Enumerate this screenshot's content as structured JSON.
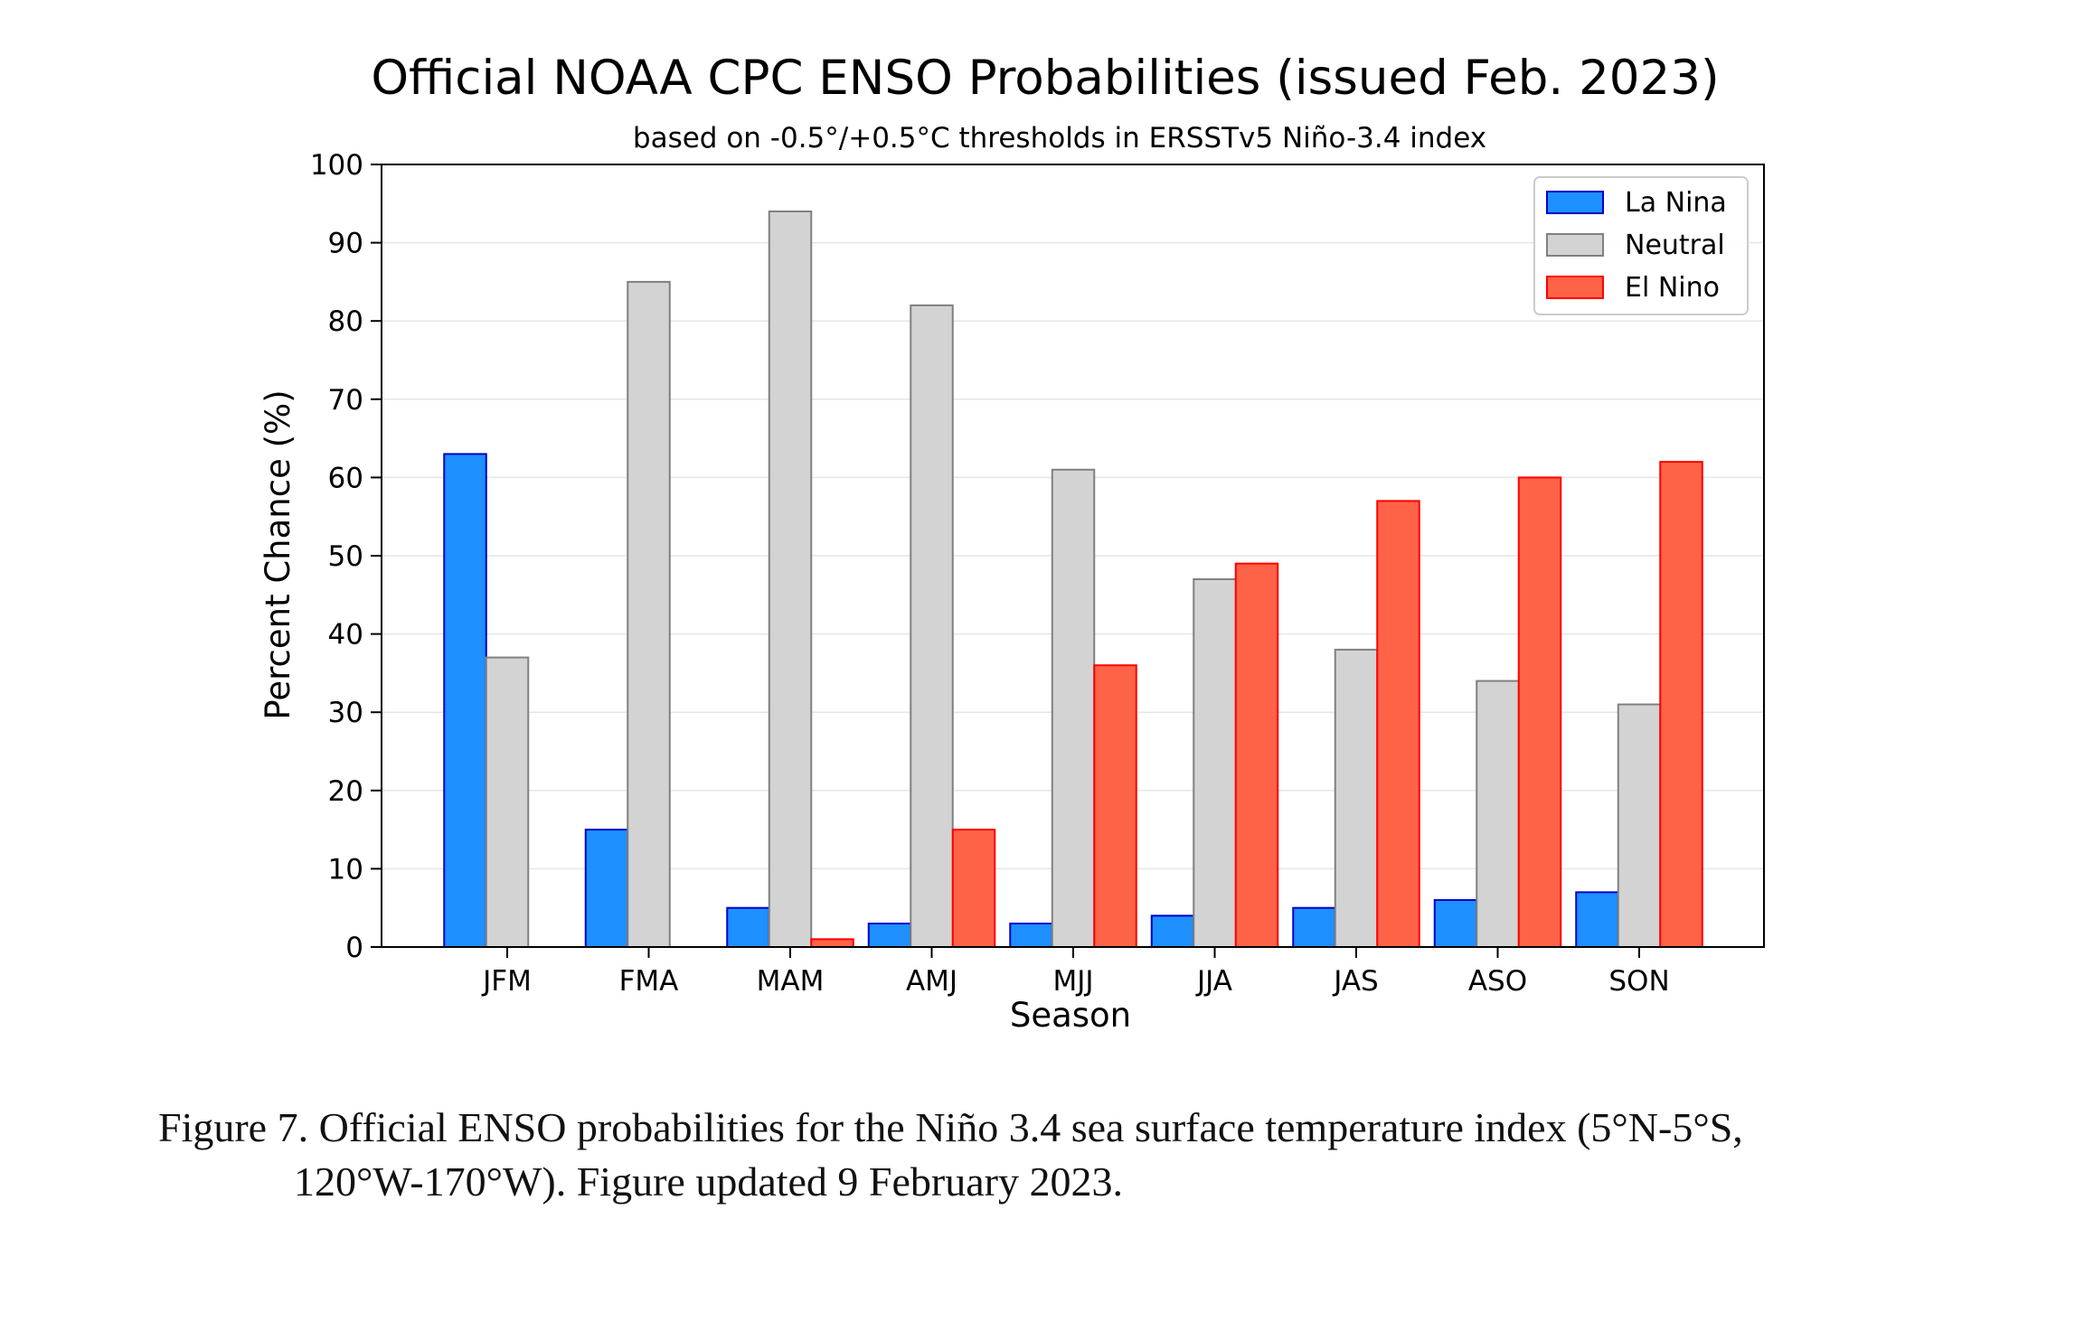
{
  "chart_data": {
    "type": "bar",
    "title": "Official NOAA CPC ENSO Probabilities (issued Feb. 2023)",
    "subtitle": "based on -0.5°/+0.5°C thresholds in ERSSTv5 Niño-3.4 index",
    "xlabel": "Season",
    "ylabel": "Percent Chance (%)",
    "ylim": [
      0,
      100
    ],
    "yticks": [
      0,
      10,
      20,
      30,
      40,
      50,
      60,
      70,
      80,
      90,
      100
    ],
    "grid": "horizontal",
    "legend_position": "top-right",
    "categories": [
      "JFM",
      "FMA",
      "MAM",
      "AMJ",
      "MJJ",
      "JJA",
      "JAS",
      "ASO",
      "SON"
    ],
    "series": [
      {
        "name": "La Nina",
        "color": "#1E90FF",
        "edge": "#0000CD",
        "values": [
          63,
          15,
          5,
          3,
          3,
          4,
          5,
          6,
          7
        ]
      },
      {
        "name": "Neutral",
        "color": "#D3D3D3",
        "edge": "#808080",
        "values": [
          37,
          85,
          94,
          82,
          61,
          47,
          38,
          34,
          31
        ]
      },
      {
        "name": "El Nino",
        "color": "#FF6347",
        "edge": "#FF0000",
        "values": [
          0,
          0,
          1,
          15,
          36,
          49,
          57,
          60,
          62
        ]
      }
    ]
  },
  "caption": {
    "line1": "Figure 7. Official ENSO probabilities for the Niño 3.4 sea surface temperature index (5°N-5°S,",
    "line2": "120°W-170°W). Figure updated 9 February 2023."
  }
}
